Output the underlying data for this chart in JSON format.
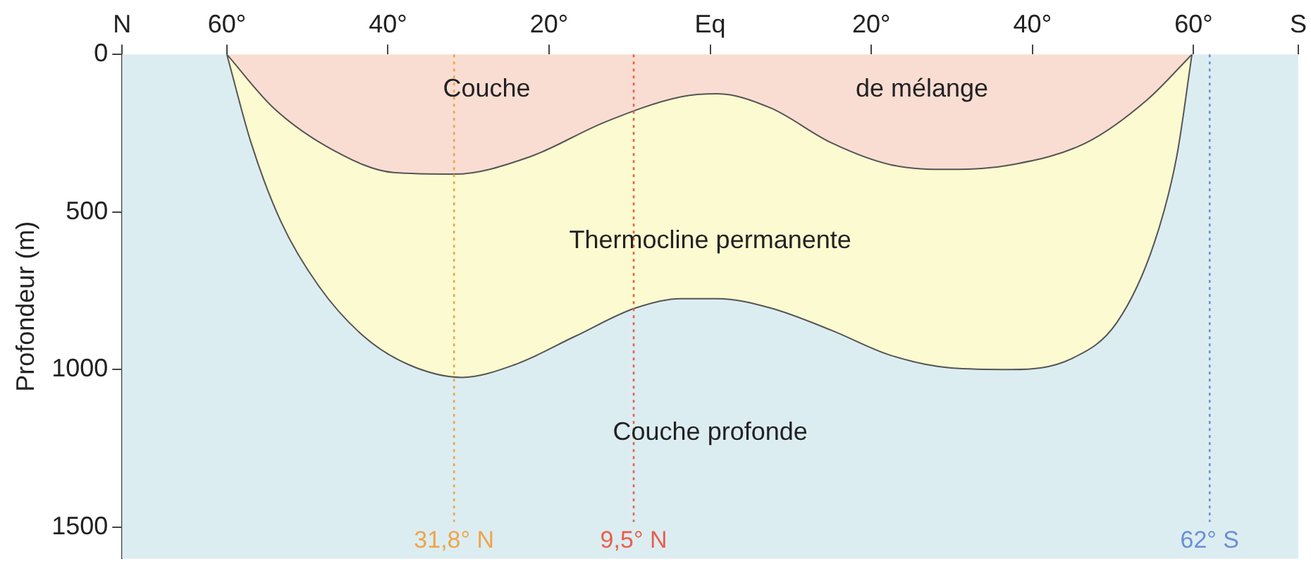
{
  "chart_data": {
    "type": "area",
    "ylabel": "Profondeur (m)",
    "xlim": [
      -73,
      73
    ],
    "ylim": [
      1600,
      0
    ],
    "xticks": [
      {
        "value": -73,
        "label": "N"
      },
      {
        "value": -60,
        "label": "60°"
      },
      {
        "value": -40,
        "label": "40°"
      },
      {
        "value": -20,
        "label": "20°"
      },
      {
        "value": 0,
        "label": "Eq"
      },
      {
        "value": 20,
        "label": "20°"
      },
      {
        "value": 40,
        "label": "40°"
      },
      {
        "value": 60,
        "label": "60°"
      },
      {
        "value": 73,
        "label": "S"
      }
    ],
    "yticks": [
      0,
      500,
      1000,
      1500
    ],
    "grid": false,
    "legend": false,
    "series": [
      {
        "color": "#f9ddd3",
        "x": [
          -60,
          -54.2,
          -46.7,
          -39.3,
          -31.8,
          -22.4,
          -13.1,
          -3.7,
          0.9,
          7.5,
          15,
          22.4,
          29.9,
          37.4,
          46.7,
          54.2,
          59.8
        ],
        "values": [
          0,
          170,
          305,
          375,
          380,
          325,
          215,
          135,
          125,
          170,
          280,
          350,
          365,
          350,
          280,
          145,
          0
        ]
      },
      {
        "color": "#fbfad0",
        "x": [
          -60,
          -57,
          -53.3,
          -48.6,
          -43,
          -37.4,
          -30.8,
          -24.3,
          -16.8,
          -9.3,
          -3.7,
          0.9,
          7.5,
          15,
          22.4,
          29.9,
          37.4,
          44.9,
          50.5,
          55.1,
          57.9,
          59.8
        ],
        "values": [
          0,
          280,
          530,
          735,
          895,
          985,
          1025,
          985,
          895,
          805,
          775,
          775,
          805,
          875,
          955,
          995,
          1000,
          965,
          850,
          600,
          325,
          0
        ]
      }
    ],
    "bands": [
      {
        "axis": "y",
        "from": 0,
        "to": 1600,
        "color": "#dcedf2"
      }
    ],
    "ref_lines": [
      {
        "axis": "x",
        "value": -31.8,
        "label": "31,8° N",
        "color": "#f0a446",
        "line_style": "dotted"
      },
      {
        "axis": "x",
        "value": -9.5,
        "label": "9,5° N",
        "color": "#e8604a",
        "line_style": "dotted"
      },
      {
        "axis": "x",
        "value": 62,
        "label": "62° S",
        "color": "#6b8fd4",
        "line_style": "dotted"
      }
    ],
    "annotations": [
      "Couche",
      "de mélange",
      "Thermocline permanente",
      "Couche profonde"
    ]
  }
}
